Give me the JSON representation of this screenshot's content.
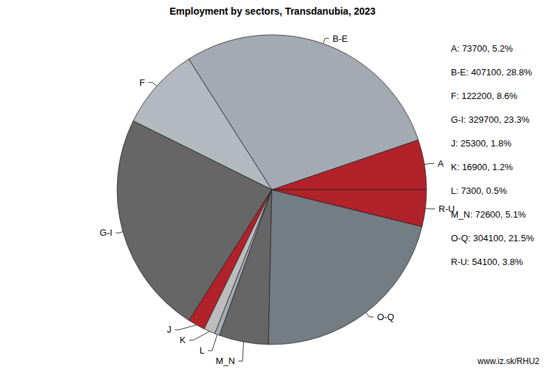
{
  "chart_data": {
    "type": "pie",
    "title": "Employment by sectors, Transdanubia, 2023",
    "categories": [
      "A",
      "B-E",
      "F",
      "G-I",
      "J",
      "K",
      "L",
      "M_N",
      "O-Q",
      "R-U"
    ],
    "values": [
      73700,
      407100,
      122200,
      329700,
      25300,
      16900,
      7300,
      72600,
      304100,
      54100
    ],
    "value_labels": [
      "A: 73700, 5.2%",
      "B-E: 407100, 28.8%",
      "F: 122200, 8.6%",
      "G-I: 329700, 23.3%",
      "J: 25300, 1.8%",
      "K: 16900, 1.2%",
      "L: 7300, 0.5%",
      "M_N: 72600, 5.1%",
      "O-Q: 304100, 21.5%",
      "R-U: 54100, 3.8%"
    ],
    "colors": [
      "#b2222a",
      "#a4aab3",
      "#b4b9c1",
      "#666666",
      "#b2222a",
      "#bcbcbc",
      "#a4aab3",
      "#666666",
      "#747c84",
      "#b2222a"
    ],
    "annotation": "www.iz.sk/RHU2"
  }
}
